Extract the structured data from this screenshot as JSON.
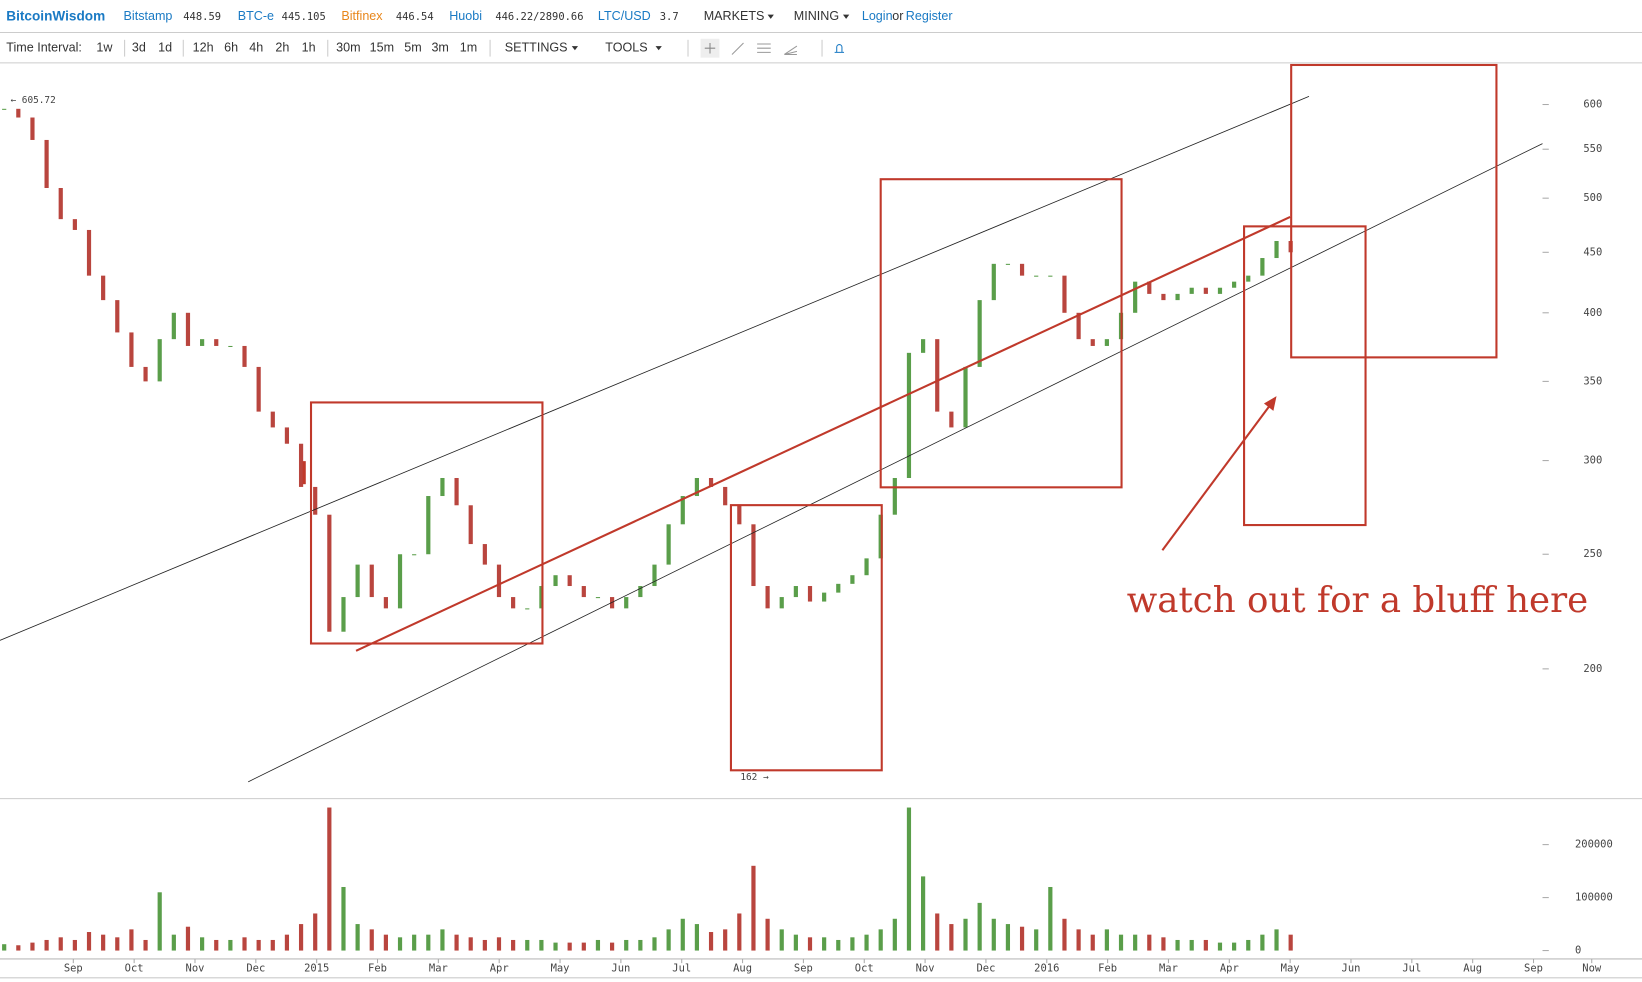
{
  "header": {
    "brand": "BitcoinWisdom",
    "tickers": [
      {
        "name": "Bitstamp",
        "price": "448.59"
      },
      {
        "name": "BTC-e",
        "price": "445.105"
      },
      {
        "name": "Bitfinex",
        "price": "446.54"
      },
      {
        "name": "Huobi",
        "price": "446.22/2890.66"
      },
      {
        "name": "LTC/USD",
        "price": "3.7"
      }
    ],
    "menus": [
      "MARKETS",
      "MINING"
    ],
    "login": "Login",
    "or": "or",
    "register": "Register"
  },
  "toolbar": {
    "label": "Time Interval:",
    "intervals": [
      "1w",
      "3d",
      "1d",
      "12h",
      "6h",
      "4h",
      "2h",
      "1h",
      "30m",
      "15m",
      "5m",
      "3m",
      "1m"
    ],
    "active": 2,
    "settings": "SETTINGS",
    "tools": "TOOLS"
  },
  "chart_data": {
    "type": "candlestick",
    "ylog": true,
    "ylim": [
      156,
      648
    ],
    "yticks": [
      200,
      250,
      300,
      350,
      400,
      450,
      500,
      550,
      600
    ],
    "x_labels": [
      "Sep",
      "Oct",
      "Nov",
      "Dec",
      "2015",
      "Feb",
      "Mar",
      "Apr",
      "May",
      "Jun",
      "Jul",
      "Aug",
      "Sep",
      "Oct",
      "Nov",
      "Dec",
      "2016",
      "Feb",
      "Mar",
      "Apr",
      "May",
      "Jun",
      "Jul",
      "Aug",
      "Sep",
      "Now"
    ],
    "up_color": "#5a9e4a",
    "down_color": "#b9453e",
    "closes": [
      595,
      585,
      560,
      510,
      480,
      470,
      430,
      410,
      385,
      360,
      350,
      380,
      400,
      375,
      380,
      375,
      375,
      360,
      330,
      320,
      310,
      285,
      270,
      215,
      230,
      245,
      230,
      225,
      250,
      250,
      280,
      290,
      275,
      255,
      245,
      230,
      225,
      225,
      235,
      240,
      235,
      230,
      230,
      225,
      230,
      235,
      245,
      265,
      280,
      290,
      285,
      275,
      265,
      235,
      225,
      230,
      235,
      228,
      232,
      236,
      240,
      248,
      270,
      290,
      370,
      380,
      330,
      320,
      360,
      410,
      440,
      440,
      430,
      430,
      430,
      400,
      380,
      375,
      380,
      400,
      425,
      415,
      410,
      415,
      420,
      415,
      420,
      425,
      430,
      445,
      460,
      450
    ],
    "volume": {
      "ylim": [
        0,
        275000
      ],
      "yticks": [
        0,
        100000,
        200000
      ],
      "values": [
        12000,
        10000,
        15000,
        20000,
        25000,
        20000,
        35000,
        30000,
        25000,
        40000,
        20000,
        110000,
        30000,
        45000,
        25000,
        20000,
        20000,
        25000,
        20000,
        20000,
        30000,
        50000,
        70000,
        270000,
        120000,
        50000,
        40000,
        30000,
        25000,
        30000,
        30000,
        40000,
        30000,
        25000,
        20000,
        25000,
        20000,
        20000,
        20000,
        15000,
        15000,
        15000,
        20000,
        15000,
        20000,
        20000,
        25000,
        40000,
        60000,
        50000,
        35000,
        40000,
        70000,
        160000,
        60000,
        40000,
        30000,
        25000,
        25000,
        20000,
        25000,
        30000,
        40000,
        60000,
        270000,
        140000,
        70000,
        50000,
        60000,
        90000,
        60000,
        50000,
        45000,
        40000,
        120000,
        60000,
        40000,
        30000,
        40000,
        30000,
        30000,
        30000,
        25000,
        20000,
        20000,
        20000,
        15000,
        15000,
        20000,
        30000,
        40000,
        30000
      ]
    },
    "high_label": "← 605.72",
    "low_label": "162 →",
    "annotation": "watch out for a bluff here"
  }
}
